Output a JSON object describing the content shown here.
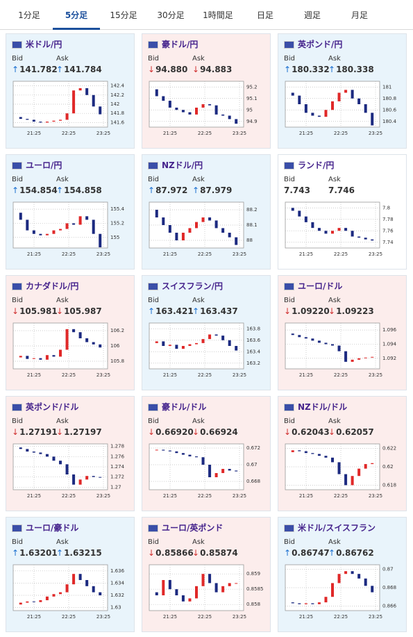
{
  "tabs": {
    "items": [
      "1分足",
      "5分足",
      "15分足",
      "30分足",
      "1時間足",
      "日足",
      "週足",
      "月足"
    ],
    "active": 1
  },
  "bid_label": "Bid",
  "ask_label": "Ask",
  "time_labels": [
    "21:25",
    "22:25",
    "23:25"
  ],
  "cards": [
    {
      "name": "米ドル/円",
      "trend": "up",
      "arrow": "↑",
      "bid": "141.782",
      "ask": "141.784",
      "ylim": [
        141.5,
        142.5
      ],
      "yticks": [
        142.4,
        142.2,
        142,
        141.8,
        141.6
      ],
      "closes": [
        141.72,
        141.68,
        141.66,
        141.62,
        141.6,
        141.62,
        141.64,
        141.66,
        141.8,
        142.3,
        142.35,
        142.2,
        141.95,
        141.78
      ]
    },
    {
      "name": "豪ドル/円",
      "trend": "down",
      "arrow": "↓",
      "bid": "94.880",
      "ask": "94.883",
      "ylim": [
        94.85,
        95.25
      ],
      "yticks": [
        95.2,
        95.1,
        95,
        94.9
      ],
      "closes": [
        95.18,
        95.12,
        95.08,
        95.02,
        95.0,
        94.98,
        94.96,
        95.02,
        95.05,
        95.04,
        94.96,
        94.95,
        94.92,
        94.88
      ]
    },
    {
      "name": "英ポンド/円",
      "trend": "up",
      "arrow": "↑",
      "bid": "180.332",
      "ask": "180.338",
      "ylim": [
        180.3,
        181.1
      ],
      "yticks": [
        181,
        180.8,
        180.6,
        180.4
      ],
      "closes": [
        180.9,
        180.85,
        180.7,
        180.55,
        180.5,
        180.48,
        180.6,
        180.75,
        180.9,
        180.95,
        180.8,
        180.7,
        180.55,
        180.33
      ]
    },
    {
      "name": "ユーロ/円",
      "trend": "up",
      "arrow": "↑",
      "bid": "154.854",
      "ask": "154.858",
      "ylim": [
        154.85,
        155.5
      ],
      "yticks": [
        155.4,
        155.2,
        155
      ],
      "closes": [
        155.35,
        155.25,
        155.1,
        155.05,
        155.03,
        155.05,
        155.1,
        155.12,
        155.2,
        155.18,
        155.3,
        155.25,
        155.05,
        154.86
      ]
    },
    {
      "name": "NZドル/円",
      "trend": "up",
      "arrow": "↑",
      "bid": "87.972",
      "ask": "87.979",
      "ylim": [
        87.95,
        88.25
      ],
      "yticks": [
        88.2,
        88.1,
        88
      ],
      "closes": [
        88.2,
        88.15,
        88.1,
        88.05,
        88.0,
        88.05,
        88.08,
        88.12,
        88.15,
        88.13,
        88.08,
        88.05,
        88.02,
        87.97
      ]
    },
    {
      "name": "ランド/円",
      "trend": "flat",
      "bid": "7.743",
      "ask": "7.746",
      "ylim": [
        7.73,
        7.81
      ],
      "yticks": [
        7.8,
        7.78,
        7.76,
        7.74
      ],
      "closes": [
        7.8,
        7.795,
        7.785,
        7.775,
        7.765,
        7.76,
        7.755,
        7.76,
        7.765,
        7.76,
        7.75,
        7.748,
        7.745,
        7.743
      ]
    },
    {
      "name": "カナダドル/円",
      "trend": "down",
      "arrow": "↓",
      "bid": "105.981",
      "ask": "105.987",
      "ylim": [
        105.7,
        106.3
      ],
      "yticks": [
        106.2,
        106,
        105.8
      ],
      "closes": [
        105.85,
        105.87,
        105.83,
        105.84,
        105.82,
        105.88,
        105.86,
        105.95,
        106.22,
        106.18,
        106.1,
        106.05,
        106.02,
        105.98
      ]
    },
    {
      "name": "スイスフラン/円",
      "trend": "up",
      "arrow": "↑",
      "bid": "163.421",
      "ask": "163.437",
      "ylim": [
        163.1,
        163.9
      ],
      "yticks": [
        163.8,
        163.6,
        163.4,
        163.2
      ],
      "closes": [
        163.55,
        163.58,
        163.5,
        163.52,
        163.45,
        163.5,
        163.53,
        163.55,
        163.62,
        163.7,
        163.68,
        163.6,
        163.5,
        163.42
      ]
    },
    {
      "name": "ユーロ/ドル",
      "trend": "down",
      "arrow": "↓",
      "bid": "1.09220",
      "ask": "1.09223",
      "ylim": [
        1.0905,
        1.097
      ],
      "yticks": [
        1.096,
        1.094,
        1.092
      ],
      "closes": [
        1.0955,
        1.0953,
        1.095,
        1.0948,
        1.0945,
        1.0942,
        1.094,
        1.0938,
        1.093,
        1.0915,
        1.0918,
        1.092,
        1.0921,
        1.0922
      ]
    },
    {
      "name": "英ポンド/ドル",
      "trend": "down",
      "arrow": "↓",
      "bid": "1.27191",
      "ask": "1.27197",
      "ylim": [
        1.2695,
        1.2785
      ],
      "yticks": [
        1.278,
        1.276,
        1.274,
        1.272,
        1.27
      ],
      "closes": [
        1.2778,
        1.2775,
        1.277,
        1.2768,
        1.2765,
        1.276,
        1.2752,
        1.2745,
        1.2725,
        1.2705,
        1.2715,
        1.2722,
        1.272,
        1.2719
      ]
    },
    {
      "name": "豪ドル/ドル",
      "trend": "down",
      "arrow": "↓",
      "bid": "0.66920",
      "ask": "0.66924",
      "ylim": [
        0.667,
        0.6725
      ],
      "yticks": [
        0.672,
        0.67,
        0.668
      ],
      "closes": [
        0.6718,
        0.6718,
        0.6717,
        0.6716,
        0.6714,
        0.6712,
        0.671,
        0.6709,
        0.67,
        0.6685,
        0.669,
        0.6695,
        0.6693,
        0.6692
      ]
    },
    {
      "name": "NZドル/ドル",
      "trend": "down",
      "arrow": "↓",
      "bid": "0.62043",
      "ask": "0.62057",
      "ylim": [
        0.6175,
        0.6225
      ],
      "yticks": [
        0.622,
        0.62,
        0.618
      ],
      "closes": [
        0.6216,
        0.6218,
        0.6217,
        0.6215,
        0.6214,
        0.6212,
        0.621,
        0.6205,
        0.6192,
        0.618,
        0.619,
        0.6198,
        0.6203,
        0.6204
      ]
    },
    {
      "name": "ユーロ/豪ドル",
      "trend": "up",
      "arrow": "↑",
      "bid": "1.63201",
      "ask": "1.63215",
      "ylim": [
        1.6295,
        1.637
      ],
      "yticks": [
        1.636,
        1.634,
        1.632,
        1.63
      ],
      "closes": [
        1.6305,
        1.6308,
        1.631,
        1.6309,
        1.6312,
        1.6318,
        1.6322,
        1.6325,
        1.6338,
        1.6355,
        1.6345,
        1.6335,
        1.6325,
        1.632
      ]
    },
    {
      "name": "ユーロ/英ポンド",
      "trend": "down",
      "arrow": "↓",
      "bid": "0.85866",
      "ask": "0.85874",
      "ylim": [
        0.8578,
        0.8593
      ],
      "yticks": [
        0.859,
        0.8585,
        0.858
      ],
      "closes": [
        0.8584,
        0.8583,
        0.8588,
        0.8585,
        0.8583,
        0.8581,
        0.8582,
        0.8586,
        0.859,
        0.8587,
        0.8584,
        0.8586,
        0.8587,
        0.8587
      ]
    },
    {
      "name": "米ドル/スイスフラン",
      "trend": "up",
      "arrow": "↑",
      "bid": "0.86747",
      "ask": "0.86762",
      "ylim": [
        0.8655,
        0.8705
      ],
      "yticks": [
        0.87,
        0.868,
        0.866
      ],
      "closes": [
        0.8664,
        0.8663,
        0.8662,
        0.8663,
        0.8662,
        0.8664,
        0.867,
        0.8685,
        0.8695,
        0.8698,
        0.8695,
        0.869,
        0.8682,
        0.8675
      ]
    }
  ]
}
